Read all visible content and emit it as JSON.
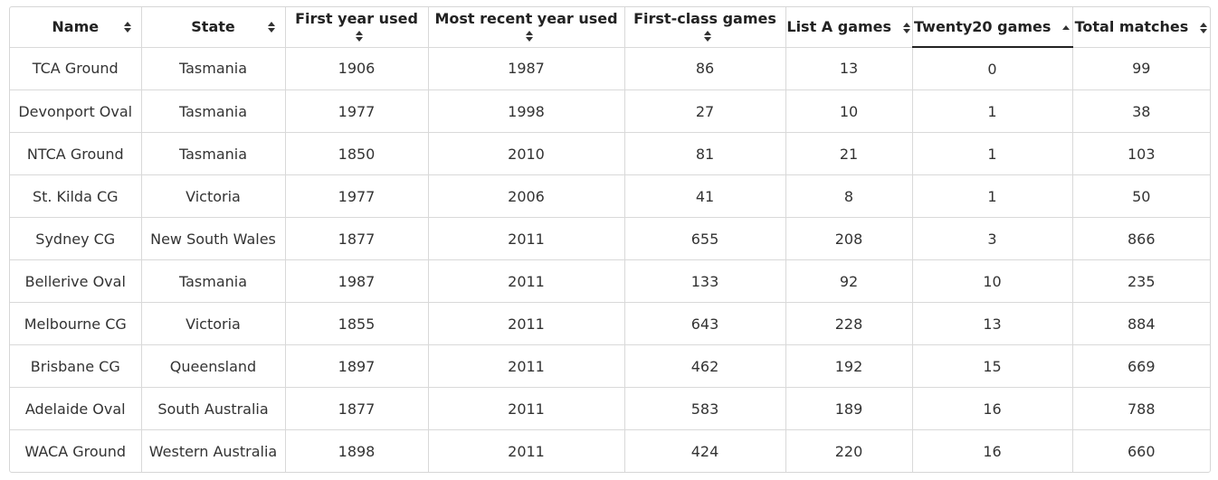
{
  "table": {
    "columns": [
      {
        "label": "Name",
        "sort": "both"
      },
      {
        "label": "State",
        "sort": "both"
      },
      {
        "label": "First year used",
        "sort": "both"
      },
      {
        "label": "Most recent year used",
        "sort": "both"
      },
      {
        "label": "First-class games",
        "sort": "both"
      },
      {
        "label": "List A games",
        "sort": "both"
      },
      {
        "label": "Twenty20 games",
        "sort": "ascending"
      },
      {
        "label": "Total matches",
        "sort": "both"
      }
    ],
    "rows": [
      [
        "TCA Ground",
        "Tasmania",
        "1906",
        "1987",
        "86",
        "13",
        "0",
        "99"
      ],
      [
        "Devonport Oval",
        "Tasmania",
        "1977",
        "1998",
        "27",
        "10",
        "1",
        "38"
      ],
      [
        "NTCA Ground",
        "Tasmania",
        "1850",
        "2010",
        "81",
        "21",
        "1",
        "103"
      ],
      [
        "St. Kilda CG",
        "Victoria",
        "1977",
        "2006",
        "41",
        "8",
        "1",
        "50"
      ],
      [
        "Sydney CG",
        "New South Wales",
        "1877",
        "2011",
        "655",
        "208",
        "3",
        "866"
      ],
      [
        "Bellerive Oval",
        "Tasmania",
        "1987",
        "2011",
        "133",
        "92",
        "10",
        "235"
      ],
      [
        "Melbourne CG",
        "Victoria",
        "1855",
        "2011",
        "643",
        "228",
        "13",
        "884"
      ],
      [
        "Brisbane CG",
        "Queensland",
        "1897",
        "2011",
        "462",
        "192",
        "15",
        "669"
      ],
      [
        "Adelaide Oval",
        "South Australia",
        "1877",
        "2011",
        "583",
        "189",
        "16",
        "788"
      ],
      [
        "WACA Ground",
        "Western Australia",
        "1898",
        "2011",
        "424",
        "220",
        "16",
        "660"
      ]
    ]
  }
}
